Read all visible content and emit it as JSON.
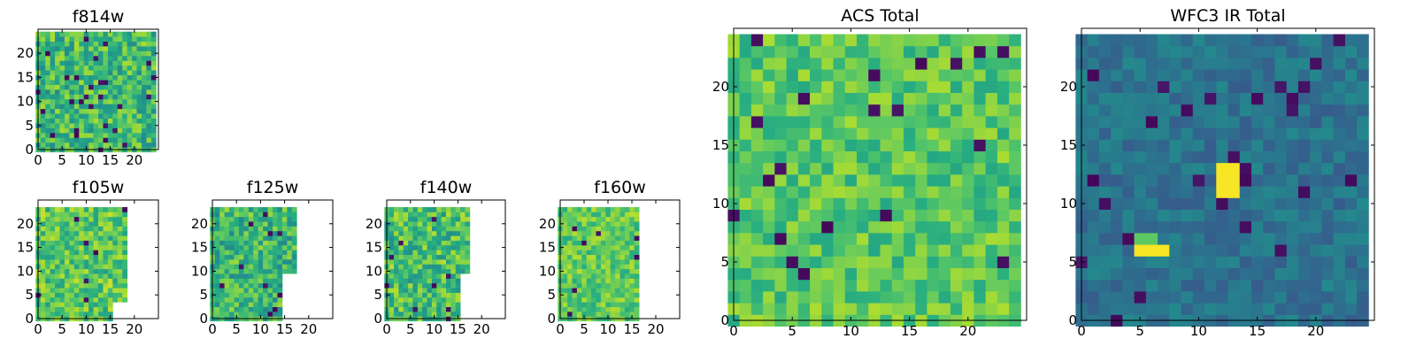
{
  "chart_data": [
    {
      "id": "f814w",
      "type": "heatmap",
      "title": "f814w",
      "colormap": "viridis",
      "extent": [
        0,
        25,
        0,
        25
      ],
      "data_width": 25,
      "data_height": 25,
      "xticks": [
        0,
        5,
        10,
        15,
        20
      ],
      "yticks": [
        0,
        5,
        10,
        15,
        20
      ],
      "tick_labels_x": [
        "0",
        "5",
        "10",
        "15",
        "20"
      ],
      "tick_labels_y": [
        "0",
        "5",
        "10",
        "15",
        "20"
      ],
      "value_range": [
        0,
        1
      ],
      "mean_level": 0.68,
      "noise": 0.2,
      "dark_fraction": 0.03,
      "seed": 814
    },
    {
      "id": "f105w",
      "type": "heatmap",
      "title": "f105w",
      "colormap": "viridis",
      "extent": [
        0,
        25,
        0,
        25
      ],
      "data_width": 19,
      "data_height": 24,
      "notch": {
        "from_row": 4,
        "width": 16
      },
      "xticks": [
        0,
        5,
        10,
        15,
        20
      ],
      "yticks": [
        0,
        5,
        10,
        15,
        20
      ],
      "tick_labels_x": [
        "0",
        "5",
        "10",
        "15",
        "20"
      ],
      "tick_labels_y": [
        "0",
        "5",
        "10",
        "15",
        "20"
      ],
      "value_range": [
        0,
        1
      ],
      "mean_level": 0.74,
      "noise": 0.18,
      "dark_fraction": 0.02,
      "seed": 105
    },
    {
      "id": "f125w",
      "type": "heatmap",
      "title": "f125w",
      "colormap": "viridis",
      "extent": [
        0,
        25,
        0,
        25
      ],
      "data_width": 18,
      "data_height": 24,
      "notch": {
        "from_row": 10,
        "width": 15
      },
      "xticks": [
        0,
        5,
        10,
        15,
        20
      ],
      "yticks": [
        0,
        5,
        10,
        15,
        20
      ],
      "tick_labels_x": [
        "0",
        "5",
        "10",
        "15",
        "20"
      ],
      "tick_labels_y": [
        "0",
        "5",
        "10",
        "15",
        "20"
      ],
      "value_range": [
        0,
        1
      ],
      "mean_level": 0.66,
      "noise": 0.2,
      "dark_fraction": 0.02,
      "seed": 125
    },
    {
      "id": "f140w",
      "type": "heatmap",
      "title": "f140w",
      "colormap": "viridis",
      "extent": [
        0,
        25,
        0,
        25
      ],
      "data_width": 18,
      "data_height": 24,
      "notch": {
        "from_row": 10,
        "width": 16
      },
      "xticks": [
        0,
        5,
        10,
        15,
        20
      ],
      "yticks": [
        0,
        5,
        10,
        15,
        20
      ],
      "tick_labels_x": [
        "0",
        "5",
        "10",
        "15",
        "20"
      ],
      "tick_labels_y": [
        "0",
        "5",
        "10",
        "15",
        "20"
      ],
      "value_range": [
        0,
        1
      ],
      "mean_level": 0.7,
      "noise": 0.2,
      "dark_fraction": 0.02,
      "seed": 140
    },
    {
      "id": "f160w",
      "type": "heatmap",
      "title": "f160w",
      "colormap": "viridis",
      "extent": [
        0,
        25,
        0,
        25
      ],
      "data_width": 17,
      "data_height": 24,
      "xticks": [
        0,
        5,
        10,
        15,
        20
      ],
      "yticks": [
        0,
        5,
        10,
        15,
        20
      ],
      "tick_labels_x": [
        "0",
        "5",
        "10",
        "15",
        "20"
      ],
      "tick_labels_y": [
        "0",
        "5",
        "10",
        "15",
        "20"
      ],
      "value_range": [
        0,
        1
      ],
      "mean_level": 0.76,
      "noise": 0.14,
      "dark_fraction": 0.02,
      "seed": 160
    },
    {
      "id": "acs_total",
      "type": "heatmap",
      "title": "ACS Total",
      "colormap": "viridis",
      "extent": [
        0,
        25,
        0,
        25
      ],
      "data_width": 25,
      "data_height": 25,
      "xticks": [
        0,
        5,
        10,
        15,
        20
      ],
      "yticks": [
        0,
        5,
        10,
        15,
        20
      ],
      "tick_labels_x": [
        "0",
        "5",
        "10",
        "15",
        "20"
      ],
      "tick_labels_y": [
        "0",
        "5",
        "10",
        "15",
        "20"
      ],
      "value_range": [
        0,
        1
      ],
      "mean_level": 0.74,
      "noise": 0.14,
      "dark_fraction": 0.025,
      "seed": 2001
    },
    {
      "id": "wfc3_ir_total",
      "type": "heatmap",
      "title": "WFC3 IR Total",
      "colormap": "viridis",
      "extent": [
        0,
        25,
        0,
        25
      ],
      "data_width": 25,
      "data_height": 25,
      "xticks": [
        0,
        5,
        10,
        15,
        20
      ],
      "yticks": [
        0,
        5,
        10,
        15,
        20
      ],
      "tick_labels_x": [
        "0",
        "5",
        "10",
        "15",
        "20"
      ],
      "tick_labels_y": [
        "0",
        "5",
        "10",
        "15",
        "20"
      ],
      "value_range": [
        0,
        1
      ],
      "mean_level": 0.38,
      "noise": 0.09,
      "dark_fraction": 0.04,
      "seed": 3001,
      "bright_sources": [
        {
          "x": 12,
          "y": 11,
          "w": 2,
          "h": 1,
          "value": 0.99
        },
        {
          "x": 12,
          "y": 12,
          "w": 2,
          "h": 2,
          "value": 0.99
        },
        {
          "x": 5,
          "y": 6,
          "w": 3,
          "h": 1,
          "value": 0.99
        },
        {
          "x": 5,
          "y": 7,
          "w": 2,
          "h": 1,
          "value": 0.75
        }
      ]
    }
  ]
}
